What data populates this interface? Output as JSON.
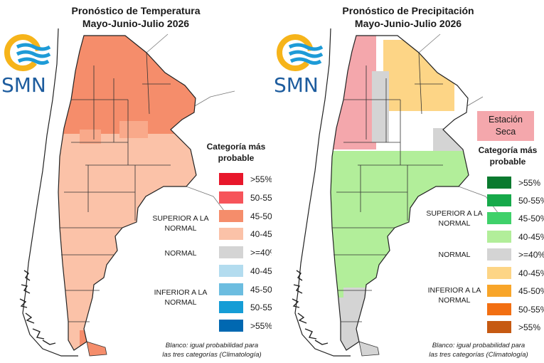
{
  "temperature_panel": {
    "title_line1": "Pronóstico de Temperatura",
    "title_line2": "Mayo-Junio-Julio 2026",
    "logo_text": "SMN",
    "legend_title": "Categoría más probable",
    "legend": [
      {
        "label": ">55%",
        "color": "#e8172b"
      },
      {
        "label": "50-55%",
        "color": "#f6545a"
      },
      {
        "label": "45-50%",
        "color": "#f58d6b"
      },
      {
        "label": "40-45%",
        "color": "#fbc2a8"
      },
      {
        "label": ">=40%",
        "color": "#d4d4d4"
      },
      {
        "label": "40-45%",
        "color": "#b3dcef"
      },
      {
        "label": "45-50%",
        "color": "#6cbde0"
      },
      {
        "label": "50-55%",
        "color": "#159dd6"
      },
      {
        "label": ">55%",
        "color": "#0068b1"
      }
    ],
    "group_upper": "SUPERIOR A LA NORMAL",
    "group_normal": "NORMAL",
    "group_lower": "INFERIOR A LA NORMAL",
    "footnote_line1": "Blanco: igual probabilidad para",
    "footnote_line2": "las tres categorías (Climatología)"
  },
  "precipitation_panel": {
    "title_line1": "Pronóstico de Precipitación",
    "title_line2": "Mayo-Junio-Julio 2026",
    "logo_text": "SMN",
    "dry_season_label": "Estación Seca",
    "dry_season_color": "#f4a7ac",
    "legend_title": "Categoría más probable",
    "legend": [
      {
        "label": ">55%",
        "color": "#0a7a2f"
      },
      {
        "label": "50-55%",
        "color": "#16a94a"
      },
      {
        "label": "45-50%",
        "color": "#3fd16a"
      },
      {
        "label": "40-45%",
        "color": "#b2ee9a"
      },
      {
        "label": ">=40%",
        "color": "#d4d4d4"
      },
      {
        "label": "40-45%",
        "color": "#fdd586"
      },
      {
        "label": "45-50%",
        "color": "#f8a529"
      },
      {
        "label": "50-55%",
        "color": "#f26f12"
      },
      {
        "label": ">55%",
        "color": "#c65a12"
      }
    ],
    "group_upper": "SUPERIOR A LA NORMAL",
    "group_normal": "NORMAL",
    "group_lower": "INFERIOR A LA NORMAL",
    "footnote_line1": "Blanco: igual probabilidad para",
    "footnote_line2": "las tres categorías (Climatología)"
  },
  "colors": {
    "logo_yellow": "#f6b41a",
    "logo_blue": "#1e9bd7",
    "logo_text": "#1d5c9e",
    "border": "#333333"
  }
}
